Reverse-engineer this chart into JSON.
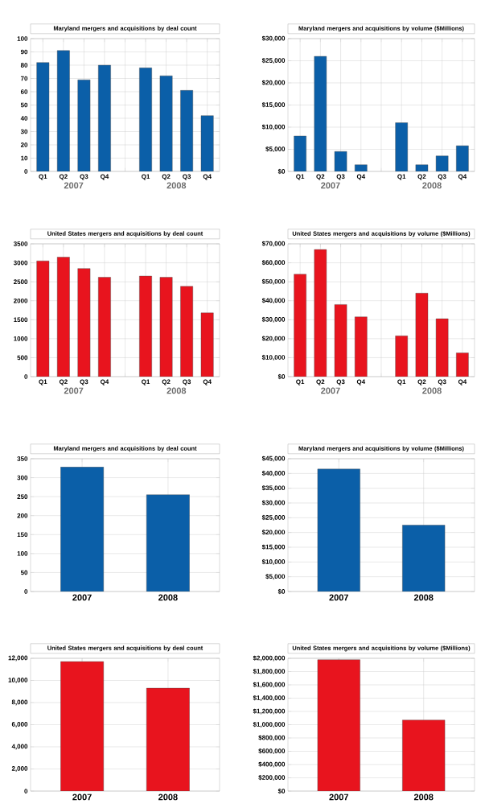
{
  "chart_data": [
    {
      "type": "bar",
      "title": "Maryland mergers and acquisitions by deal count",
      "categories": [
        "Q1",
        "Q2",
        "Q3",
        "Q4",
        null,
        "Q1",
        "Q2",
        "Q3",
        "Q4"
      ],
      "values": [
        82,
        91,
        69,
        80,
        null,
        78,
        72,
        61,
        42
      ],
      "color": "#0b5fa8",
      "ylim": [
        0,
        100
      ],
      "yticks": [
        0,
        10,
        20,
        30,
        40,
        50,
        60,
        70,
        80,
        90,
        100
      ],
      "grid": true,
      "annotations": [
        "2007",
        "2008"
      ]
    },
    {
      "type": "bar",
      "title": "Maryland mergers and acquisitions by volume ($Millions)",
      "categories": [
        "Q1",
        "Q2",
        "Q3",
        "Q4",
        null,
        "Q1",
        "Q2",
        "Q3",
        "Q4"
      ],
      "values": [
        8000,
        26000,
        4500,
        1500,
        null,
        11000,
        1500,
        3500,
        5800
      ],
      "color": "#0b5fa8",
      "ylim": [
        0,
        30000
      ],
      "yticks": [
        {
          "value": 0,
          "label": "$0"
        },
        {
          "value": 5000,
          "label": "$5,000"
        },
        {
          "value": 10000,
          "label": "$10,000"
        },
        {
          "value": 15000,
          "label": "$15,000"
        },
        {
          "value": 20000,
          "label": "$20,000"
        },
        {
          "value": 25000,
          "label": "$25,000"
        },
        {
          "value": 30000,
          "label": "$30,000"
        }
      ],
      "grid": true,
      "annotations": [
        "2007",
        "2008"
      ]
    },
    {
      "type": "bar",
      "title": "United States mergers and acquisitions by deal count",
      "categories": [
        "Q1",
        "Q2",
        "Q3",
        "Q4",
        null,
        "Q1",
        "Q2",
        "Q3",
        "Q4"
      ],
      "values": [
        3050,
        3150,
        2850,
        2620,
        null,
        2650,
        2620,
        2380,
        1680
      ],
      "color": "#e8141e",
      "ylim": [
        0,
        3500
      ],
      "yticks": [
        0,
        500,
        1000,
        1500,
        2000,
        2500,
        3000,
        3500
      ],
      "grid": true,
      "annotations": [
        "2007",
        "2008"
      ]
    },
    {
      "type": "bar",
      "title": "United States mergers and acquisitions by volume ($Millions)",
      "categories": [
        "Q1",
        "Q2",
        "Q3",
        "Q4",
        null,
        "Q1",
        "Q2",
        "Q3",
        "Q4"
      ],
      "values": [
        54000,
        67000,
        38000,
        31500,
        null,
        21500,
        44000,
        30500,
        12500
      ],
      "color": "#e8141e",
      "ylim": [
        0,
        70000
      ],
      "yticks": [
        {
          "value": 0,
          "label": "$0"
        },
        {
          "value": 10000,
          "label": "$10,000"
        },
        {
          "value": 20000,
          "label": "$20,000"
        },
        {
          "value": 30000,
          "label": "$30,000"
        },
        {
          "value": 40000,
          "label": "$40,000"
        },
        {
          "value": 50000,
          "label": "$50,000"
        },
        {
          "value": 60000,
          "label": "$60,000"
        },
        {
          "value": 70000,
          "label": "$70,000"
        }
      ],
      "grid": true,
      "annotations": [
        "2007",
        "2008"
      ]
    },
    {
      "type": "bar",
      "title": "Maryland mergers and acquisitions by deal count",
      "categories": [
        "2007",
        "2008"
      ],
      "values": [
        328,
        255
      ],
      "color": "#0b5fa8",
      "ylim": [
        0,
        350
      ],
      "yticks": [
        0,
        50,
        100,
        150,
        200,
        250,
        300,
        350
      ],
      "grid": true
    },
    {
      "type": "bar",
      "title": "Maryland mergers and acquisitions by volume ($Millions)",
      "categories": [
        "2007",
        "2008"
      ],
      "values": [
        41500,
        22500
      ],
      "color": "#0b5fa8",
      "ylim": [
        0,
        45000
      ],
      "yticks": [
        {
          "value": 0,
          "label": "$0"
        },
        {
          "value": 5000,
          "label": "$5,000"
        },
        {
          "value": 10000,
          "label": "$10,000"
        },
        {
          "value": 15000,
          "label": "$15,000"
        },
        {
          "value": 20000,
          "label": "$20,000"
        },
        {
          "value": 25000,
          "label": "$25,000"
        },
        {
          "value": 30000,
          "label": "$30,000"
        },
        {
          "value": 35000,
          "label": "$35,000"
        },
        {
          "value": 40000,
          "label": "$40,000"
        },
        {
          "value": 45000,
          "label": "$45,000"
        }
      ],
      "grid": true
    },
    {
      "type": "bar",
      "title": "United States mergers and acquisitions by deal count",
      "categories": [
        "2007",
        "2008"
      ],
      "values": [
        11700,
        9300
      ],
      "color": "#e8141e",
      "ylim": [
        0,
        12000
      ],
      "yticks": [
        0,
        {
          "value": 2000,
          "label": "2,000"
        },
        {
          "value": 4000,
          "label": "4,000"
        },
        {
          "value": 6000,
          "label": "6,000"
        },
        {
          "value": 8000,
          "label": "8,000"
        },
        {
          "value": 10000,
          "label": "10,000"
        },
        {
          "value": 12000,
          "label": "12,000"
        }
      ],
      "grid": true
    },
    {
      "type": "bar",
      "title": "United States mergers and acquisitions by volume ($Millions)",
      "categories": [
        "2007",
        "2008"
      ],
      "values": [
        1980000,
        1070000
      ],
      "color": "#e8141e",
      "ylim": [
        0,
        2000000
      ],
      "yticks": [
        {
          "value": 0,
          "label": "$0"
        },
        {
          "value": 200000,
          "label": "$200,000"
        },
        {
          "value": 400000,
          "label": "$400,000"
        },
        {
          "value": 600000,
          "label": "$600,000"
        },
        {
          "value": 800000,
          "label": "$800,000"
        },
        {
          "value": 1000000,
          "label": "$1,000,000"
        },
        {
          "value": 1200000,
          "label": "$1,200,000"
        },
        {
          "value": 1400000,
          "label": "$1,400,000"
        },
        {
          "value": 1600000,
          "label": "$1,600,000"
        },
        {
          "value": 1800000,
          "label": "$1,800,000"
        },
        {
          "value": 2000000,
          "label": "$2,000,000"
        }
      ],
      "grid": true
    }
  ]
}
